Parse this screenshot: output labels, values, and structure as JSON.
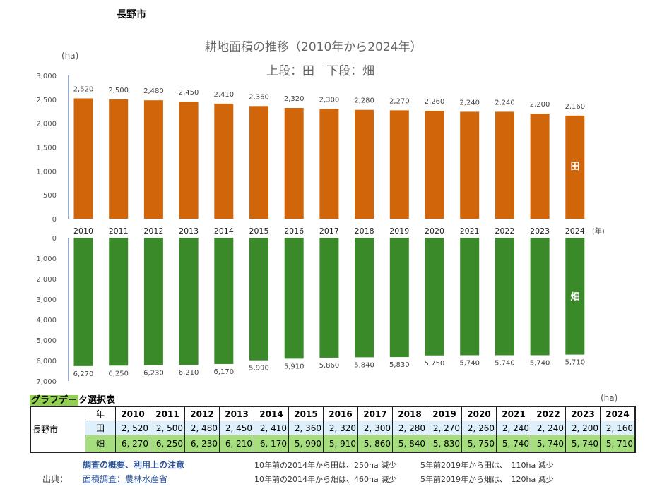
{
  "city": "長野市",
  "chart_data": [
    {
      "type": "bar",
      "title": "耕地面積の推移（2010年から2024年）",
      "subtitle": "上段：田　下段：畑",
      "ylabel": "(ha)",
      "xlabel": "(年)",
      "series_label": "田",
      "categories": [
        "2010",
        "2011",
        "2012",
        "2013",
        "2014",
        "2015",
        "2016",
        "2017",
        "2018",
        "2019",
        "2020",
        "2021",
        "2022",
        "2023",
        "2024"
      ],
      "values": [
        2520,
        2500,
        2480,
        2450,
        2410,
        2360,
        2320,
        2300,
        2280,
        2270,
        2260,
        2240,
        2240,
        2200,
        2160
      ],
      "ylim": [
        0,
        3000
      ],
      "yticks": [
        "0",
        "500",
        "1,000",
        "1,500",
        "2,000",
        "2,500",
        "3,000"
      ],
      "data_labels": [
        "2,520",
        "2,500",
        "2,480",
        "2,450",
        "2,410",
        "2,360",
        "2,320",
        "2,300",
        "2,280",
        "2,270",
        "2,260",
        "2,240",
        "2,240",
        "2,200",
        "2,160"
      ],
      "color": "#d0650a"
    },
    {
      "type": "bar",
      "series_label": "畑",
      "inverted": true,
      "categories": [
        "2010",
        "2011",
        "2012",
        "2013",
        "2014",
        "2015",
        "2016",
        "2017",
        "2018",
        "2019",
        "2020",
        "2021",
        "2022",
        "2023",
        "2024"
      ],
      "values": [
        6270,
        6250,
        6230,
        6210,
        6170,
        5990,
        5910,
        5860,
        5840,
        5830,
        5750,
        5740,
        5740,
        5740,
        5710
      ],
      "ylim": [
        0,
        7000
      ],
      "yticks": [
        "0",
        "1,000",
        "2,000",
        "3,000",
        "4,000",
        "5,000",
        "6,000",
        "7,000"
      ],
      "data_labels": [
        "6,270",
        "6,250",
        "6,230",
        "6,210",
        "6,170",
        "5,990",
        "5,910",
        "5,860",
        "5,840",
        "5,830",
        "5,750",
        "5,740",
        "5,740",
        "5,740",
        "5,710"
      ],
      "color": "#3a8a2a"
    }
  ],
  "table": {
    "title_hl": "グラフデー",
    "title_rest": "タ選択表",
    "unit": "(ha)",
    "city": "長野市",
    "year_label": "年",
    "rice_label": "田",
    "field_label": "畑",
    "years": [
      "2010",
      "2011",
      "2012",
      "2013",
      "2014",
      "2015",
      "2016",
      "2017",
      "2018",
      "2019",
      "2020",
      "2021",
      "2022",
      "2023",
      "2024"
    ],
    "rice": [
      "2, 520",
      "2, 500",
      "2, 480",
      "2, 450",
      "2, 410",
      "2, 360",
      "2, 320",
      "2, 300",
      "2, 280",
      "2, 270",
      "2, 260",
      "2, 240",
      "2, 240",
      "2, 200",
      "2, 160"
    ],
    "field": [
      "6, 270",
      "6, 250",
      "6, 230",
      "6, 210",
      "6, 170",
      "5, 990",
      "5, 910",
      "5, 860",
      "5, 840",
      "5, 830",
      "5, 750",
      "5, 740",
      "5, 740",
      "5, 740",
      "5, 710"
    ]
  },
  "footer": {
    "notes_link": "調査の概要、利用上の注意",
    "source_label": "出典：",
    "source_link": "面積調査：農林水産省",
    "note1": "10年前の2014年から田は、250ha 減少",
    "note2": "5年前2019年から田は、　110ha 減少",
    "note3": "10年前の2014年から畑は、460ha 減少",
    "note4": "5年前2019年から畑は、　120ha 減少"
  }
}
